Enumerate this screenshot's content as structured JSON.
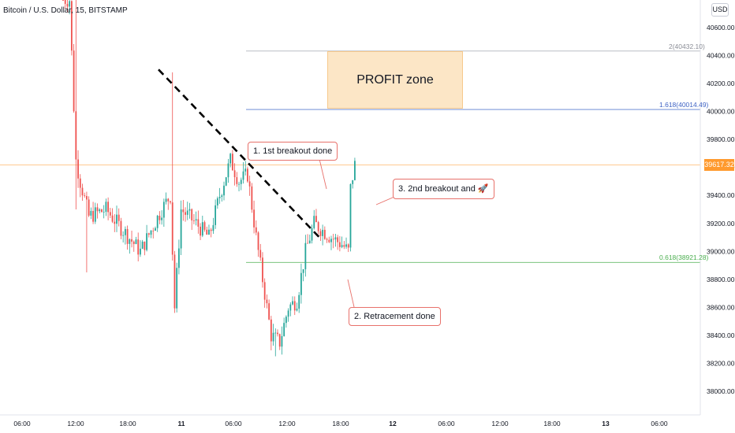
{
  "header": {
    "title": "Bitcoin / U.S. Dollar, 15, BITSTAMP",
    "currency": "USD"
  },
  "chart_data": {
    "type": "candlestick",
    "y_axis": {
      "range": [
        37800,
        40750
      ],
      "ticks": [
        "40600.00",
        "40400.00",
        "40200.00",
        "40000.00",
        "39800.00",
        "39600.00",
        "39400.00",
        "39200.00",
        "39000.00",
        "38800.00",
        "38600.00",
        "38400.00",
        "38200.00",
        "38000.00"
      ]
    },
    "x_axis": {
      "ticks": [
        "06:00",
        "12:00",
        "18:00",
        "11",
        "06:00",
        "12:00",
        "18:00",
        "12",
        "06:00",
        "12:00",
        "18:00",
        "13",
        "06:00"
      ]
    },
    "current_price": {
      "value": 39617.32,
      "label": "39617.32",
      "color": "#ff9a2e"
    },
    "fib_levels": [
      {
        "label": "2(40432.10)",
        "value": 40432.1,
        "color": "#b0b3bd"
      },
      {
        "label": "1.618(40014.49)",
        "value": 40014.49,
        "color": "#5b7ccf"
      },
      {
        "label": "0.618(38921.28)",
        "value": 38921.28,
        "color": "#66bb6a"
      }
    ],
    "trendline": {
      "from_price": 40300,
      "to_price": 39100,
      "style": "dashed",
      "color": "#000000"
    },
    "profit_zone": {
      "label": "PROFIT zone",
      "from_price": 40020,
      "to_price": 40430
    },
    "annotations": [
      {
        "label": "1. 1st breakout done"
      },
      {
        "label": "2. Retracement done"
      },
      {
        "label": "3. 2nd breakout and 🚀"
      }
    ],
    "colors": {
      "up": "#26a69a",
      "down": "#ef5350"
    }
  }
}
